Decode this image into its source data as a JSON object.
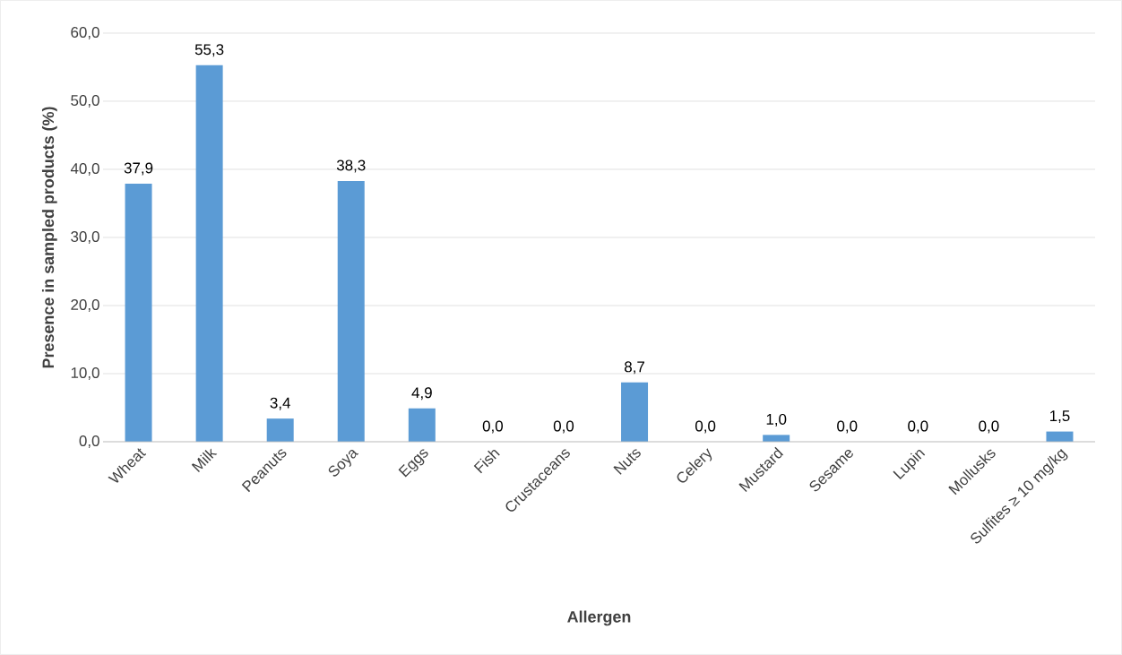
{
  "chart_data": {
    "type": "bar",
    "xlabel": "Allergen",
    "ylabel": "Presence in sampled products (%)",
    "categories": [
      "Wheat",
      "Milk",
      "Peanuts",
      "Soya",
      "Eggs",
      "Fish",
      "Crustaceans",
      "Nuts",
      "Celery",
      "Mustard",
      "Sesame",
      "Lupin",
      "Mollusks",
      "Sulfites ≥ 10 mg/kg"
    ],
    "values": [
      37.9,
      55.3,
      3.4,
      38.3,
      4.9,
      0.0,
      0.0,
      8.7,
      0.0,
      1.0,
      0.0,
      0.0,
      0.0,
      1.5
    ],
    "value_labels": [
      "37,9",
      "55,3",
      "3,4",
      "38,3",
      "4,9",
      "0,0",
      "0,0",
      "8,7",
      "0,0",
      "1,0",
      "0,0",
      "0,0",
      "0,0",
      "1,5"
    ],
    "color": "#5b9bd5",
    "ylim": [
      0,
      60
    ],
    "yticks": [
      {
        "value": 0,
        "label": "0,0"
      },
      {
        "value": 10,
        "label": "10,0"
      },
      {
        "value": 20,
        "label": "20,0"
      },
      {
        "value": 30,
        "label": "30,0"
      },
      {
        "value": 40,
        "label": "40,0"
      },
      {
        "value": 50,
        "label": "50,0"
      },
      {
        "value": 60,
        "label": "60,0"
      }
    ],
    "grid": "y"
  }
}
